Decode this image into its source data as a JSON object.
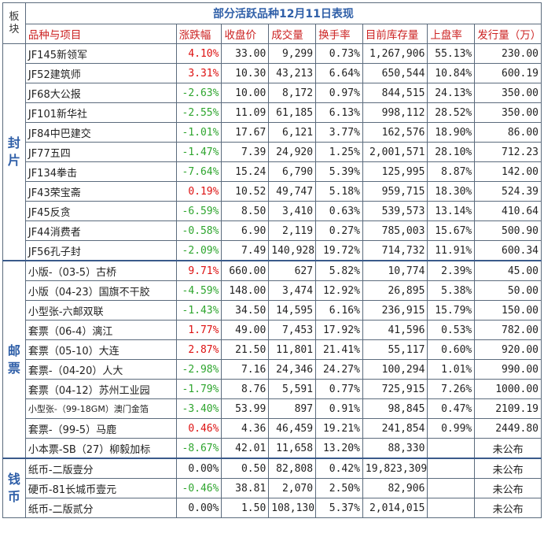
{
  "table": {
    "title": "部分活跃品种12月11日表现",
    "plate_header": "板块",
    "headers": [
      "品种与项目",
      "涨跌幅",
      "收盘价",
      "成交量",
      "换手率",
      "目前库存量",
      "上盘率",
      "发行量（万）"
    ],
    "colors": {
      "up": "#dd1111",
      "down": "#2ea52e",
      "title": "#2f5fa8",
      "header": "#cc2222"
    },
    "sections": [
      {
        "label": "封片",
        "rows": [
          {
            "name": "JF145新领军",
            "change": "4.10%",
            "trend": "up",
            "close": "33.00",
            "volume": "9,299",
            "turnover": "0.73%",
            "stock": "1,267,906",
            "upload": "55.13%",
            "issue": "230.00"
          },
          {
            "name": "JF52建筑师",
            "change": "3.31%",
            "trend": "up",
            "close": "10.30",
            "volume": "43,213",
            "turnover": "6.64%",
            "stock": "650,544",
            "upload": "10.84%",
            "issue": "600.19"
          },
          {
            "name": "JF68大公报",
            "change": "-2.63%",
            "trend": "down",
            "close": "10.00",
            "volume": "8,172",
            "turnover": "0.97%",
            "stock": "844,515",
            "upload": "24.13%",
            "issue": "350.00"
          },
          {
            "name": "JF101新华社",
            "change": "-2.55%",
            "trend": "down",
            "close": "11.09",
            "volume": "61,185",
            "turnover": "6.13%",
            "stock": "998,112",
            "upload": "28.52%",
            "issue": "350.00"
          },
          {
            "name": "JF84中巴建交",
            "change": "-1.01%",
            "trend": "down",
            "close": "17.67",
            "volume": "6,121",
            "turnover": "3.77%",
            "stock": "162,576",
            "upload": "18.90%",
            "issue": "86.00"
          },
          {
            "name": "JF77五四",
            "change": "-1.47%",
            "trend": "down",
            "close": "7.39",
            "volume": "24,920",
            "turnover": "1.25%",
            "stock": "2,001,571",
            "upload": "28.10%",
            "issue": "712.23"
          },
          {
            "name": "JF134拳击",
            "change": "-7.64%",
            "trend": "down",
            "close": "15.24",
            "volume": "6,790",
            "turnover": "5.39%",
            "stock": "125,995",
            "upload": "8.87%",
            "issue": "142.00"
          },
          {
            "name": "JF43荣宝斋",
            "change": "0.19%",
            "trend": "up",
            "close": "10.52",
            "volume": "49,747",
            "turnover": "5.18%",
            "stock": "959,715",
            "upload": "18.30%",
            "issue": "524.39"
          },
          {
            "name": "JF45反贪",
            "change": "-6.59%",
            "trend": "down",
            "close": "8.50",
            "volume": "3,410",
            "turnover": "0.63%",
            "stock": "539,573",
            "upload": "13.14%",
            "issue": "410.64"
          },
          {
            "name": "JF44消费者",
            "change": "-0.58%",
            "trend": "down",
            "close": "6.90",
            "volume": "2,119",
            "turnover": "0.27%",
            "stock": "785,003",
            "upload": "15.67%",
            "issue": "500.90"
          },
          {
            "name": "JF56孔子封",
            "change": "-2.09%",
            "trend": "down",
            "close": "7.49",
            "volume": "140,928",
            "turnover": "19.72%",
            "stock": "714,732",
            "upload": "11.91%",
            "issue": "600.34"
          }
        ]
      },
      {
        "label": "邮票",
        "rows": [
          {
            "name": "小版-（03-5）古桥",
            "change": "9.71%",
            "trend": "up",
            "close": "660.00",
            "volume": "627",
            "turnover": "5.82%",
            "stock": "10,774",
            "upload": "2.39%",
            "issue": "45.00"
          },
          {
            "name": "小版（04-23）国旗不干胶",
            "change": "-4.59%",
            "trend": "down",
            "close": "148.00",
            "volume": "3,474",
            "turnover": "12.92%",
            "stock": "26,895",
            "upload": "5.38%",
            "issue": "50.00"
          },
          {
            "name": "小型张-六邮双联",
            "change": "-1.43%",
            "trend": "down",
            "close": "34.50",
            "volume": "14,595",
            "turnover": "6.16%",
            "stock": "236,915",
            "upload": "15.79%",
            "issue": "150.00"
          },
          {
            "name": "套票（06-4）漓江",
            "change": "1.77%",
            "trend": "up",
            "close": "49.00",
            "volume": "7,453",
            "turnover": "17.92%",
            "stock": "41,596",
            "upload": "0.53%",
            "issue": "782.00"
          },
          {
            "name": "套票（05-10）大连",
            "change": "2.87%",
            "trend": "up",
            "close": "21.50",
            "volume": "11,801",
            "turnover": "21.41%",
            "stock": "55,117",
            "upload": "0.60%",
            "issue": "920.00"
          },
          {
            "name": "套票-（04-20）人大",
            "change": "-2.98%",
            "trend": "down",
            "close": "7.16",
            "volume": "24,346",
            "turnover": "24.27%",
            "stock": "100,294",
            "upload": "1.01%",
            "issue": "990.00"
          },
          {
            "name": "套票（04-12）苏州工业园",
            "change": "-1.79%",
            "trend": "down",
            "close": "8.76",
            "volume": "5,591",
            "turnover": "0.77%",
            "stock": "725,915",
            "upload": "7.26%",
            "issue": "1000.00"
          },
          {
            "name": "小型张-（99-18GM）澳门金箔",
            "change": "-3.40%",
            "trend": "down",
            "close": "53.99",
            "volume": "897",
            "turnover": "0.91%",
            "stock": "98,845",
            "upload": "0.47%",
            "issue": "2109.19",
            "small": true
          },
          {
            "name": "套票-（99-5）马鹿",
            "change": "0.46%",
            "trend": "up",
            "close": "4.36",
            "volume": "46,459",
            "turnover": "19.21%",
            "stock": "241,854",
            "upload": "0.99%",
            "issue": "2449.80"
          },
          {
            "name": "小本票-SB（27）柳毅加标",
            "change": "-8.67%",
            "trend": "down",
            "close": "42.01",
            "volume": "11,658",
            "turnover": "13.20%",
            "stock": "88,330",
            "upload": "",
            "issue": "未公布"
          }
        ]
      },
      {
        "label": "钱币",
        "rows": [
          {
            "name": "纸币-二版壹分",
            "change": "0.00%",
            "trend": "flat",
            "close": "0.50",
            "volume": "82,808",
            "turnover": "0.42%",
            "stock": "19,823,309",
            "upload": "",
            "issue": "未公布"
          },
          {
            "name": "硬币-81长城币壹元",
            "change": "-0.46%",
            "trend": "down",
            "close": "38.81",
            "volume": "2,070",
            "turnover": "2.50%",
            "stock": "82,906",
            "upload": "",
            "issue": "未公布"
          },
          {
            "name": "纸币-二版贰分",
            "change": "0.00%",
            "trend": "flat",
            "close": "1.50",
            "volume": "108,130",
            "turnover": "5.37%",
            "stock": "2,014,015",
            "upload": "",
            "issue": "未公布"
          }
        ]
      }
    ]
  }
}
